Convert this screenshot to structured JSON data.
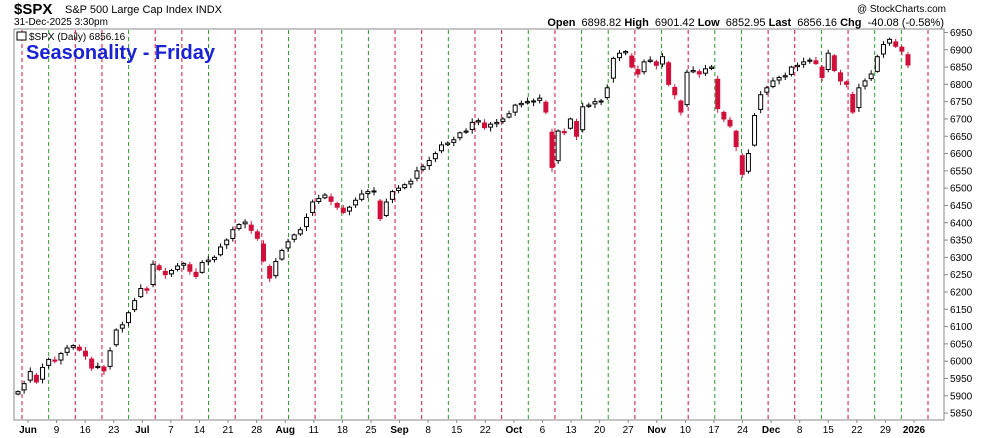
{
  "header": {
    "symbol": "$SPX",
    "name": "S&P 500 Large Cap Index",
    "exchange": "INDX",
    "datetime": "31-Dec-2025 3:30pm",
    "brand": "@ StockCharts.com",
    "quote": {
      "open_label": "Open",
      "open": "6898.82",
      "high_label": "High",
      "high": "6901.42",
      "low_label": "Low",
      "low": "6852.95",
      "last_label": "Last",
      "last": "6856.16",
      "chg_label": "Chg",
      "chg": "-40.08 (-0.58%)"
    }
  },
  "legend": {
    "text": "$SPX (Daily) 6856.16"
  },
  "overlay_title": "Seasonality - Friday",
  "colors": {
    "up": "#000000",
    "down": "#d0103a",
    "green_line": "#2a9d2a",
    "red_line": "#d0103a",
    "title_blue": "#1a22d6"
  },
  "chart_data": {
    "type": "candlestick",
    "ylim": [
      5830,
      6960
    ],
    "y_ticks": [
      5850,
      5900,
      5950,
      6000,
      6050,
      6100,
      6150,
      6200,
      6250,
      6300,
      6350,
      6400,
      6450,
      6500,
      6550,
      6600,
      6650,
      6700,
      6750,
      6800,
      6850,
      6900,
      6950
    ],
    "x_labels": [
      "Jun",
      "9",
      "16",
      "23",
      "Jul",
      "7",
      "14",
      "21",
      "28",
      "Aug",
      "11",
      "18",
      "25",
      "Sep",
      "8",
      "15",
      "22",
      "Oct",
      "6",
      "13",
      "20",
      "27",
      "Nov",
      "10",
      "17",
      "24",
      "Dec",
      "8",
      "15",
      "22",
      "29",
      "2026"
    ],
    "x_label_bold": [
      true,
      false,
      false,
      false,
      true,
      false,
      false,
      false,
      false,
      true,
      false,
      false,
      false,
      true,
      false,
      false,
      false,
      true,
      false,
      false,
      false,
      false,
      true,
      false,
      false,
      false,
      true,
      false,
      false,
      false,
      false,
      true
    ],
    "friday_lines": [
      "red",
      "green",
      "red",
      "red",
      "green",
      "red",
      "red",
      "green",
      "red",
      "red",
      "green",
      "red",
      "green",
      "green",
      "red",
      "red",
      "green",
      "red",
      "red",
      "green",
      "red",
      "green",
      "green",
      "red",
      "green",
      "red",
      "green",
      "green",
      "red",
      "red",
      "green",
      "red",
      "green",
      "green",
      "red"
    ],
    "series": [
      {
        "name": "$SPX (Daily)",
        "closes": [
          5912,
          5935,
          5970,
          5940,
          5982,
          6005,
          6000,
          6022,
          6038,
          6045,
          6032,
          6015,
          5980,
          5985,
          5972,
          6030,
          6090,
          6105,
          6140,
          6175,
          6210,
          6205,
          6280,
          6265,
          6250,
          6262,
          6275,
          6282,
          6260,
          6245,
          6285,
          6292,
          6300,
          6330,
          6350,
          6380,
          6395,
          6402,
          6378,
          6355,
          6290,
          6240,
          6288,
          6320,
          6345,
          6365,
          6380,
          6415,
          6460,
          6470,
          6480,
          6462,
          6445,
          6430,
          6445,
          6465,
          6483,
          6490,
          6492,
          6412,
          6460,
          6490,
          6500,
          6510,
          6520,
          6550,
          6562,
          6580,
          6600,
          6625,
          6630,
          6640,
          6660,
          6665,
          6690,
          6695,
          6675,
          6685,
          6690,
          6700,
          6715,
          6740,
          6745,
          6750,
          6752,
          6760,
          6720,
          6560,
          6665,
          6660,
          6700,
          6650,
          6735,
          6740,
          6750,
          6752,
          6790,
          6875,
          6890,
          6895,
          6850,
          6830,
          6865,
          6870,
          6855,
          6880,
          6800,
          6770,
          6720,
          6835,
          6840,
          6830,
          6845,
          6850,
          6730,
          6700,
          6680,
          6620,
          6540,
          6600,
          6710,
          6770,
          6790,
          6810,
          6820,
          6825,
          6850,
          6855,
          6865,
          6870,
          6860,
          6820,
          6890,
          6840,
          6810,
          6800,
          6720,
          6790,
          6810,
          6830,
          6880,
          6915,
          6930,
          6910,
          6896,
          6856
        ]
      }
    ]
  }
}
